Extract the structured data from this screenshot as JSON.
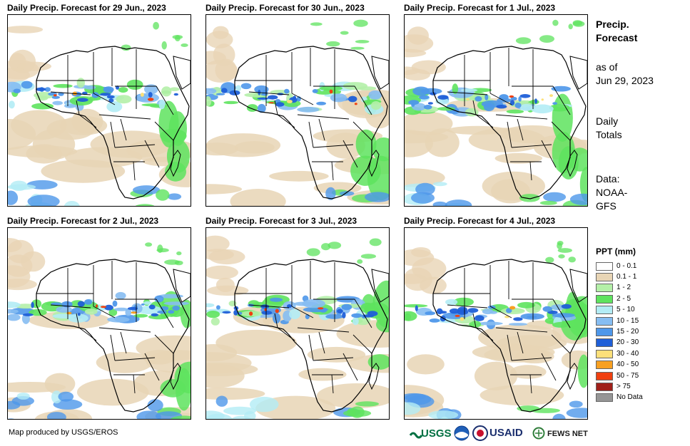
{
  "panels": [
    {
      "title": "Daily Precip. Forecast for 29 Jun., 2023"
    },
    {
      "title": "Daily Precip. Forecast for 30 Jun., 2023"
    },
    {
      "title": "Daily Precip. Forecast for 1 Jul., 2023"
    },
    {
      "title": "Daily Precip. Forecast for 2 Jul., 2023"
    },
    {
      "title": "Daily Precip. Forecast for 3 Jul., 2023"
    },
    {
      "title": "Daily Precip. Forecast for 4 Jul., 2023"
    }
  ],
  "sidebar": {
    "title_line1": "Precip.",
    "title_line2": "Forecast",
    "asof_line1": "as of",
    "asof_line2": "Jun 29, 2023",
    "totals_line1": "Daily",
    "totals_line2": "Totals",
    "data_line1": "Data:",
    "data_line2": "NOAA-",
    "data_line3": "GFS"
  },
  "legend": {
    "title": "PPT (mm)",
    "items": [
      {
        "label": "0 - 0.1",
        "color": "#ffffff"
      },
      {
        "label": "0.1 - 1",
        "color": "#e8d5b5"
      },
      {
        "label": "1 - 2",
        "color": "#b4f0a8"
      },
      {
        "label": "2 - 5",
        "color": "#5ee35e"
      },
      {
        "label": "5 - 10",
        "color": "#b3ecf5"
      },
      {
        "label": "10 - 15",
        "color": "#86bdf2"
      },
      {
        "label": "15 - 20",
        "color": "#4e97ea"
      },
      {
        "label": "20 - 30",
        "color": "#1f5fd8"
      },
      {
        "label": "30 - 40",
        "color": "#fde07a"
      },
      {
        "label": "40 - 50",
        "color": "#f8a021"
      },
      {
        "label": "50 - 75",
        "color": "#f04010"
      },
      {
        "label": "> 75",
        "color": "#a0201a"
      },
      {
        "label": "No Data",
        "color": "#969696"
      }
    ]
  },
  "footer": {
    "credit": "Map produced by USGS/EROS",
    "logos": {
      "usgs": "USGS",
      "usaid": "USAID",
      "fewsnet": "FEWS NET"
    }
  }
}
